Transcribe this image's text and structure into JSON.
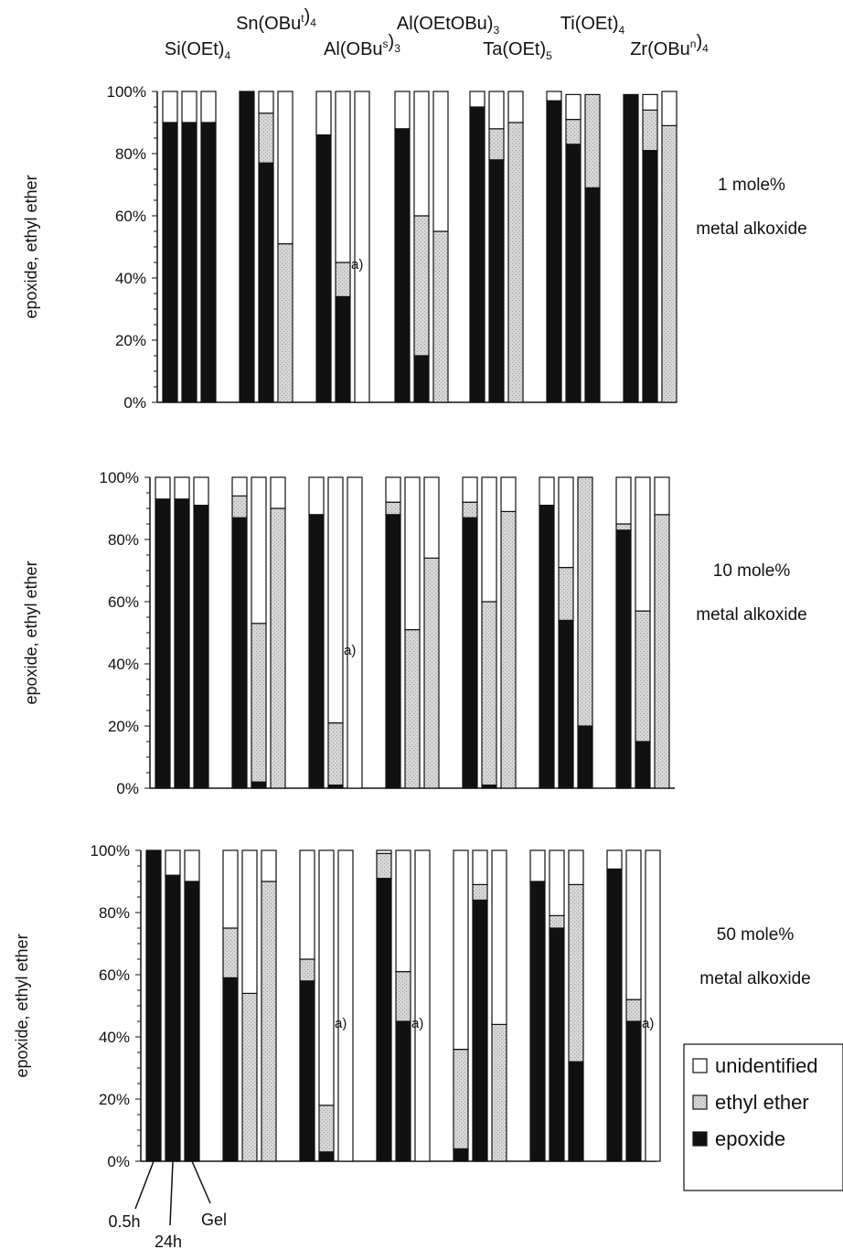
{
  "chart_data": {
    "type": "bar",
    "stacked": true,
    "ylim": [
      0,
      100
    ],
    "yticks": [
      "0%",
      "20%",
      "40%",
      "60%",
      "80%",
      "100%"
    ],
    "ylabel": "epoxide, ethyl ether",
    "alkoxides": [
      {
        "name": "Si(OEt)4",
        "parts": [
          {
            "t": "Si(OEt)"
          },
          {
            "t": "4",
            "s": "sub"
          }
        ]
      },
      {
        "name": "Sn(OBut)4",
        "parts": [
          {
            "t": "Sn(OBu"
          },
          {
            "t": "t",
            "s": "sup"
          },
          {
            "t": ")"
          },
          {
            "t": "4",
            "s": "sub"
          }
        ]
      },
      {
        "name": "Al(OBus)3",
        "parts": [
          {
            "t": "Al(OBu"
          },
          {
            "t": "s",
            "s": "sup"
          },
          {
            "t": ")"
          },
          {
            "t": "3",
            "s": "sub"
          }
        ]
      },
      {
        "name": "Al(OEtOBu)3",
        "parts": [
          {
            "t": "Al(OEtOBu)"
          },
          {
            "t": "3",
            "s": "sub"
          }
        ]
      },
      {
        "name": "Ta(OEt)5",
        "parts": [
          {
            "t": "Ta(OEt)"
          },
          {
            "t": "5",
            "s": "sub"
          }
        ]
      },
      {
        "name": "Ti(OEt)4",
        "parts": [
          {
            "t": "Ti(OEt)"
          },
          {
            "t": "4",
            "s": "sub"
          }
        ]
      },
      {
        "name": "Zr(OBun)4",
        "parts": [
          {
            "t": "Zr(OBu"
          },
          {
            "t": "n",
            "s": "sup"
          },
          {
            "t": ")"
          },
          {
            "t": "4",
            "s": "sub"
          }
        ]
      }
    ],
    "times": [
      "0.5h",
      "24h",
      "Gel"
    ],
    "legend": [
      {
        "key": "unidentified",
        "label": "unidentified",
        "color": "#ffffff"
      },
      {
        "key": "ethyl_ether",
        "label": "ethyl ether",
        "color": "#d4d4d4"
      },
      {
        "key": "epoxide",
        "label": "epoxide",
        "color": "#111111"
      }
    ],
    "panels": [
      {
        "label_line1": "1 mole%",
        "label_line2": "metal alkoxide",
        "annotations": [
          {
            "group": 2,
            "bar": 1,
            "text": "a)"
          }
        ],
        "epoxide": [
          [
            90,
            90,
            90
          ],
          [
            100,
            77,
            0
          ],
          [
            86,
            34,
            0
          ],
          [
            88,
            15,
            0
          ],
          [
            95,
            78,
            0
          ],
          [
            97,
            83,
            69
          ],
          [
            99,
            81,
            0
          ]
        ],
        "ethyl_ether": [
          [
            0,
            0,
            0
          ],
          [
            0,
            16,
            51
          ],
          [
            0,
            11,
            0
          ],
          [
            0,
            45,
            55
          ],
          [
            0,
            10,
            90
          ],
          [
            0,
            8,
            30
          ],
          [
            0,
            13,
            89
          ]
        ],
        "unidentified": [
          [
            10,
            10,
            10
          ],
          [
            0,
            7,
            49
          ],
          [
            14,
            55,
            100
          ],
          [
            12,
            40,
            45
          ],
          [
            5,
            12,
            10
          ],
          [
            3,
            8,
            0
          ],
          [
            0,
            5,
            11
          ]
        ]
      },
      {
        "label_line1": "10 mole%",
        "label_line2": "metal alkoxide",
        "annotations": [
          {
            "group": 2,
            "bar": 1,
            "text": "a)"
          }
        ],
        "epoxide": [
          [
            93,
            93,
            91
          ],
          [
            87,
            2,
            0
          ],
          [
            88,
            1,
            0
          ],
          [
            88,
            0,
            0
          ],
          [
            87,
            1,
            0
          ],
          [
            91,
            54,
            20
          ],
          [
            83,
            15,
            0
          ]
        ],
        "ethyl_ether": [
          [
            0,
            0,
            0
          ],
          [
            7,
            51,
            90
          ],
          [
            0,
            20,
            0
          ],
          [
            4,
            51,
            74
          ],
          [
            5,
            59,
            89
          ],
          [
            0,
            17,
            80
          ],
          [
            2,
            42,
            88
          ]
        ],
        "unidentified": [
          [
            7,
            7,
            9
          ],
          [
            6,
            47,
            10
          ],
          [
            12,
            79,
            100
          ],
          [
            8,
            49,
            26
          ],
          [
            8,
            40,
            11
          ],
          [
            9,
            29,
            0
          ],
          [
            15,
            43,
            12
          ]
        ]
      },
      {
        "label_line1": "50 mole%",
        "label_line2": "metal alkoxide",
        "annotations": [
          {
            "group": 2,
            "bar": 1,
            "text": "a)"
          },
          {
            "group": 3,
            "bar": 1,
            "text": "a)"
          },
          {
            "group": 6,
            "bar": 1,
            "text": "a)"
          }
        ],
        "epoxide": [
          [
            100,
            92,
            90
          ],
          [
            59,
            0,
            0
          ],
          [
            58,
            3,
            0
          ],
          [
            91,
            45,
            0
          ],
          [
            4,
            84,
            0
          ],
          [
            90,
            75,
            32
          ],
          [
            94,
            45,
            0
          ]
        ],
        "ethyl_ether": [
          [
            0,
            0,
            0
          ],
          [
            16,
            54,
            90
          ],
          [
            7,
            15,
            0
          ],
          [
            8,
            16,
            0
          ],
          [
            32,
            5,
            44
          ],
          [
            0,
            4,
            57
          ],
          [
            0,
            7,
            0
          ]
        ],
        "unidentified": [
          [
            0,
            8,
            10
          ],
          [
            25,
            46,
            10
          ],
          [
            35,
            82,
            100
          ],
          [
            1,
            39,
            100
          ],
          [
            64,
            11,
            56
          ],
          [
            10,
            21,
            11
          ],
          [
            6,
            48,
            100
          ]
        ]
      }
    ]
  }
}
